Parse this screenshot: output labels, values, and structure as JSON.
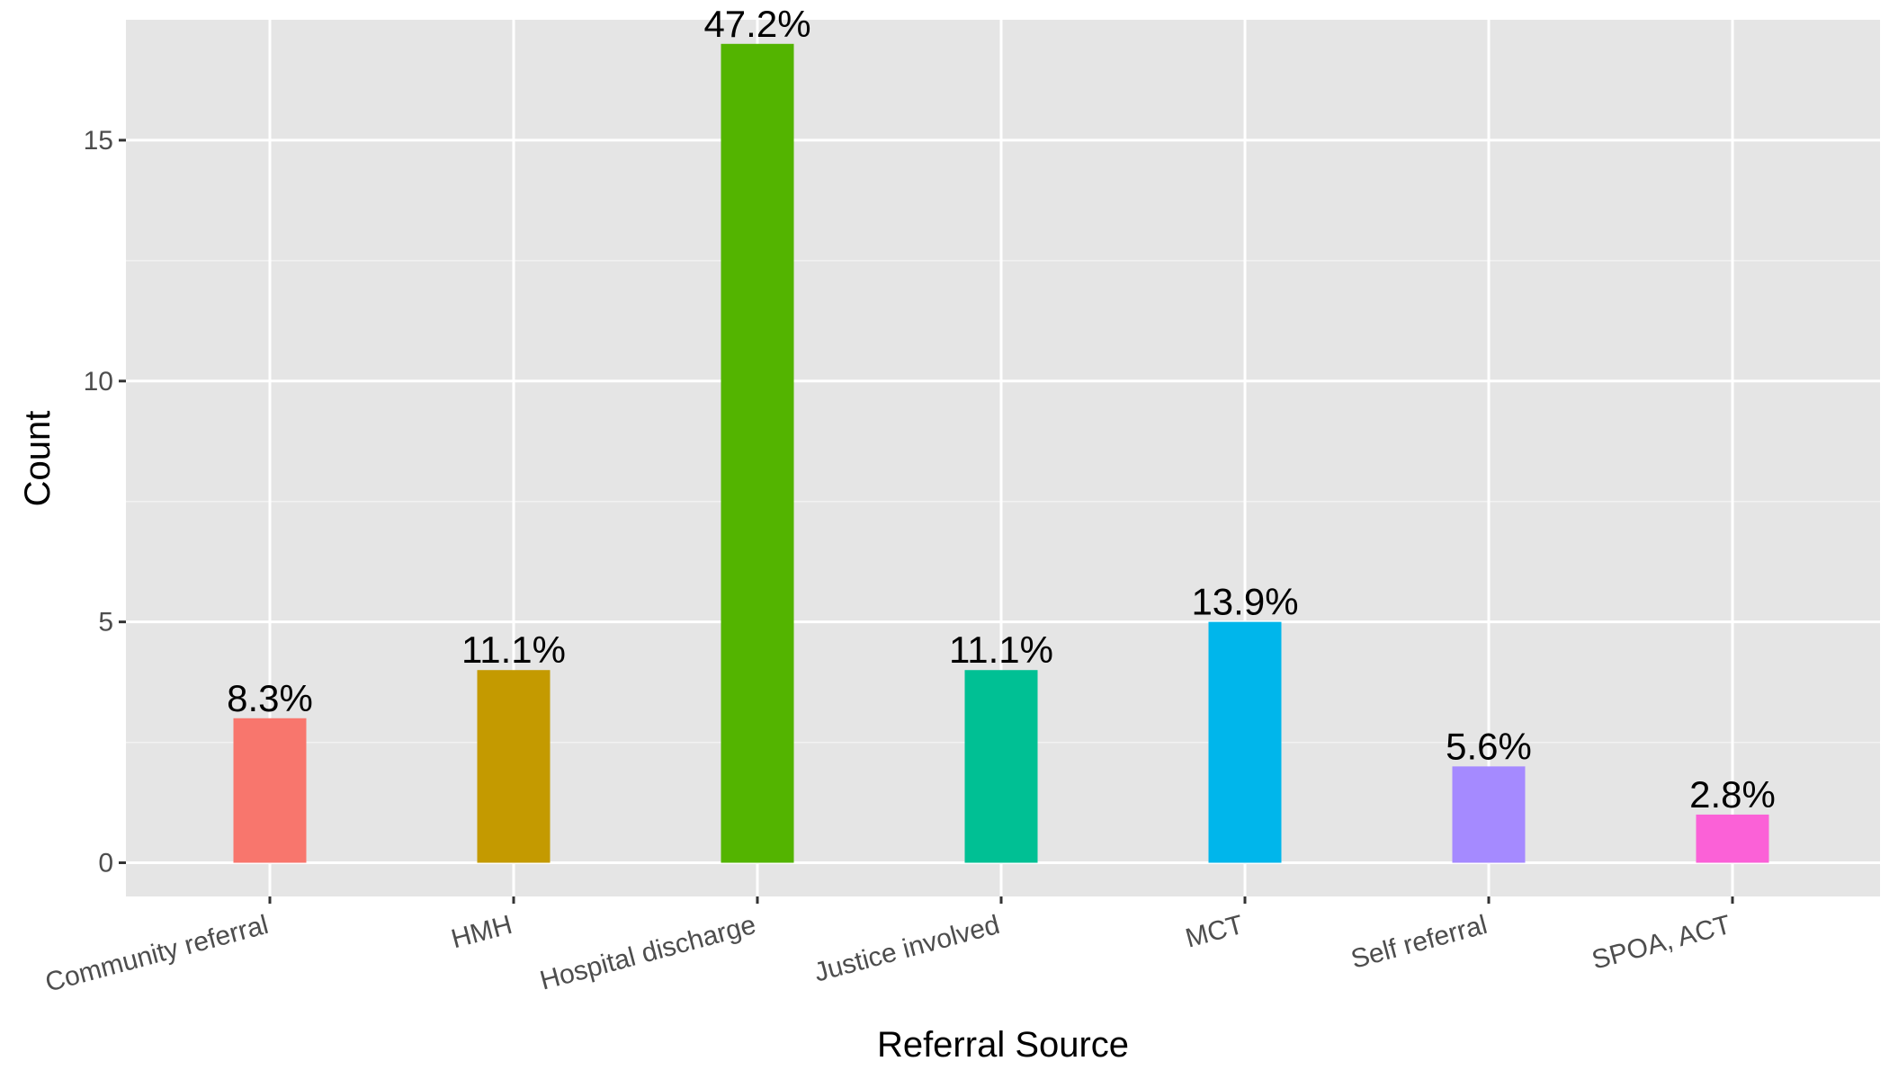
{
  "chart_data": {
    "type": "bar",
    "xlabel": "Referral Source",
    "ylabel": "Count",
    "categories": [
      "Community referral",
      "HMH",
      "Hospital discharge",
      "Justice involved",
      "MCT",
      "Self referral",
      "SPOA, ACT"
    ],
    "values": [
      3,
      4,
      17,
      4,
      5,
      2,
      1
    ],
    "labels": [
      "8.3%",
      "11.1%",
      "47.2%",
      "11.1%",
      "13.9%",
      "5.6%",
      "2.8%"
    ],
    "colors": [
      "#F8766D",
      "#C49A00",
      "#53B400",
      "#00C094",
      "#00B6EB",
      "#A58AFF",
      "#FB61D7"
    ],
    "yticks": [
      0,
      5,
      10,
      15
    ],
    "ylim": [
      -0.7,
      17.5
    ],
    "grid": true,
    "legend": "none",
    "background": "#E5E5E5"
  }
}
